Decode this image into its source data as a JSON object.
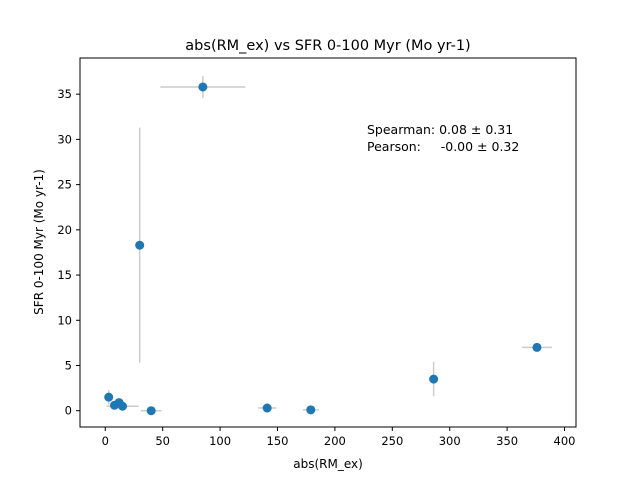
{
  "chart_data": {
    "type": "scatter",
    "title": "abs(RM_ex) vs SFR 0-100 Myr (Mo yr-1)",
    "xlabel": "abs(RM_ex)",
    "ylabel": "SFR 0-100 Myr (Mo yr-1)",
    "xlim": [
      -22,
      410
    ],
    "ylim": [
      -1.8,
      39
    ],
    "xticks": [
      0,
      50,
      100,
      150,
      200,
      250,
      300,
      350,
      400
    ],
    "yticks": [
      0,
      5,
      10,
      15,
      20,
      25,
      30,
      35
    ],
    "grid": false,
    "marker_color": "#1f77b4",
    "errorbar_color": "#cccccc",
    "points": [
      {
        "x": 3,
        "y": 1.5,
        "xerr": 0,
        "yerr": 0.8
      },
      {
        "x": 8,
        "y": 0.6,
        "xerr": 3,
        "yerr": 0.3
      },
      {
        "x": 12,
        "y": 0.9,
        "xerr": 4,
        "yerr": 0.3
      },
      {
        "x": 15,
        "y": 0.5,
        "xerr": 14,
        "yerr": 0.2
      },
      {
        "x": 30,
        "y": 18.3,
        "xerr": 0,
        "yerr": 13.0
      },
      {
        "x": 40,
        "y": 0.0,
        "xerr": 9,
        "yerr": 0.2
      },
      {
        "x": 85,
        "y": 35.8,
        "xerr": 37,
        "yerr": 1.2
      },
      {
        "x": 141,
        "y": 0.3,
        "xerr": 8,
        "yerr": 0.2
      },
      {
        "x": 179,
        "y": 0.1,
        "xerr": 7,
        "yerr": 0.2
      },
      {
        "x": 286,
        "y": 3.5,
        "xerr": 0,
        "yerr": 1.9
      },
      {
        "x": 376,
        "y": 7.0,
        "xerr": 13,
        "yerr": 0.3
      }
    ],
    "annotation": {
      "line1": "Spearman: 0.08 ± 0.31",
      "line2": "Pearson:     -0.00 ± 0.32"
    }
  }
}
